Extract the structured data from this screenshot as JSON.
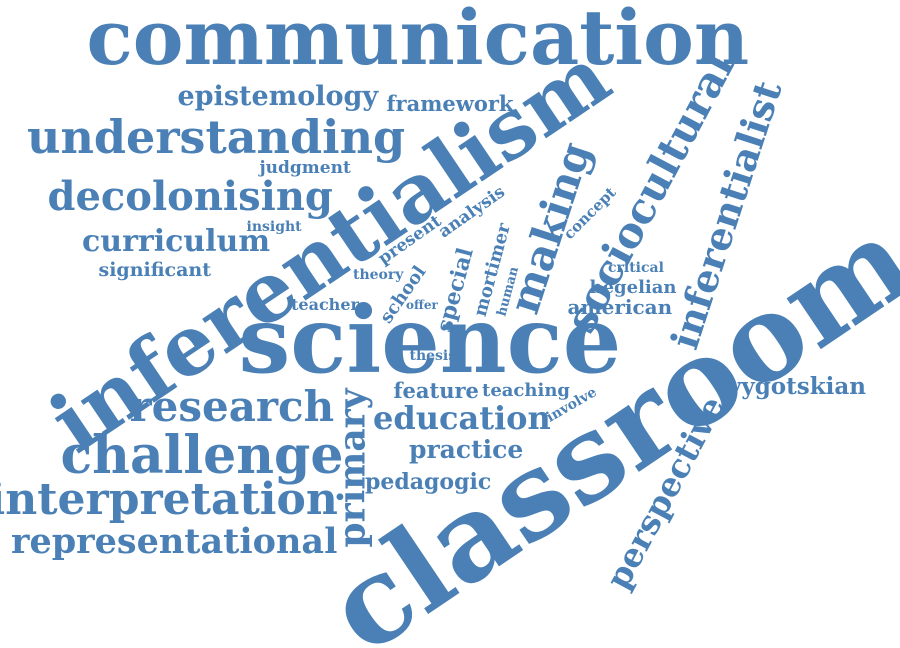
{
  "colors": {
    "word": "#4a80b5",
    "background": "#ffffff"
  },
  "words": {
    "communication": "communication",
    "epistemology": "epistemology",
    "framework": "framework",
    "understanding": "understanding",
    "judgment": "judgment",
    "decolonising": "decolonising",
    "insight": "insight",
    "curriculum": "curriculum",
    "significant": "significant",
    "inferentialism": "inferentialism",
    "science": "science",
    "classroom": "classroom",
    "sociocultural": "sociocultural",
    "inferentialist": "inferentialist",
    "making": "making",
    "present": "present",
    "analysis": "analysis",
    "concept": "concept",
    "special": "special",
    "mortimer": "mortimer",
    "human": "human",
    "school": "school",
    "theory": "theory",
    "teacher": "teacher",
    "offer": "offer",
    "critical": "critical",
    "hegelian": "hegelian",
    "american": "american",
    "thesis": "thesis",
    "feature": "feature",
    "teaching": "teaching",
    "involve": "involve",
    "vygotskian": "vygotskian",
    "research": "research",
    "education": "education",
    "primary": "primary",
    "challenge": "challenge",
    "practice": "practice",
    "pedagogic": "pedagogic",
    "interpretation": "interpretation",
    "representational": "representational",
    "perspective": "perspective"
  }
}
